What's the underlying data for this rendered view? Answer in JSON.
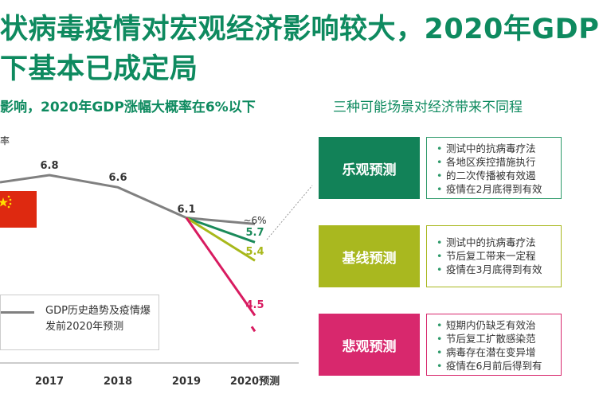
{
  "title": {
    "line1": "状病毒疫情对宏观经济影响较大，2020年GDP",
    "line2": "下基本已成定局"
  },
  "subtitle_left": "影响，2020年GDP涨幅大概率在6%以下",
  "subtitle_right": "三种可能场景对经济带来不同程",
  "ylabel_fragment": "率",
  "legend": {
    "text": "GDP历史趋势及疫情爆发前2020年预测"
  },
  "colors": {
    "title": "#0e8a5f",
    "history": "#808080",
    "optimistic": "#1a8a5a",
    "baseline": "#a8b81a",
    "pessimistic": "#d81b60"
  },
  "chart_data": {
    "type": "line",
    "categories": [
      "2017",
      "2018",
      "2019",
      "2020预测"
    ],
    "series": [
      {
        "name": "GDP历史趋势及疫情爆发前2020年预测",
        "values": [
          6.8,
          6.6,
          6.1,
          6.0
        ]
      },
      {
        "values": [
          null,
          null,
          6.1,
          5.7
        ]
      },
      {
        "values": [
          null,
          null,
          6.1,
          5.4
        ]
      },
      {
        "values": [
          null,
          null,
          6.1,
          4.5
        ]
      }
    ],
    "data_labels": {
      "v2017": "6.8",
      "v2018": "6.6",
      "v2019": "6.1",
      "v2020": "~6%",
      "opt": "5.7",
      "base": "5.4",
      "pess": "4.5"
    }
  },
  "scenarios": [
    {
      "label": "乐观预测",
      "bullets": [
        "测试中的抗病毒疗法",
        "各地区疾控措施执行",
        "的二次传播被有效遏",
        "疫情在2月底得到有效"
      ]
    },
    {
      "label": "基线预测",
      "bullets": [
        "测试中的抗病毒疗法",
        "节后复工带来一定程",
        "疫情在3月底得到有效"
      ]
    },
    {
      "label": "悲观预测",
      "bullets": [
        "短期内仍缺乏有效治",
        "节后复工扩散感染范",
        "病毒存在潜在变异增",
        "疫情在6月前后得到有"
      ]
    }
  ]
}
